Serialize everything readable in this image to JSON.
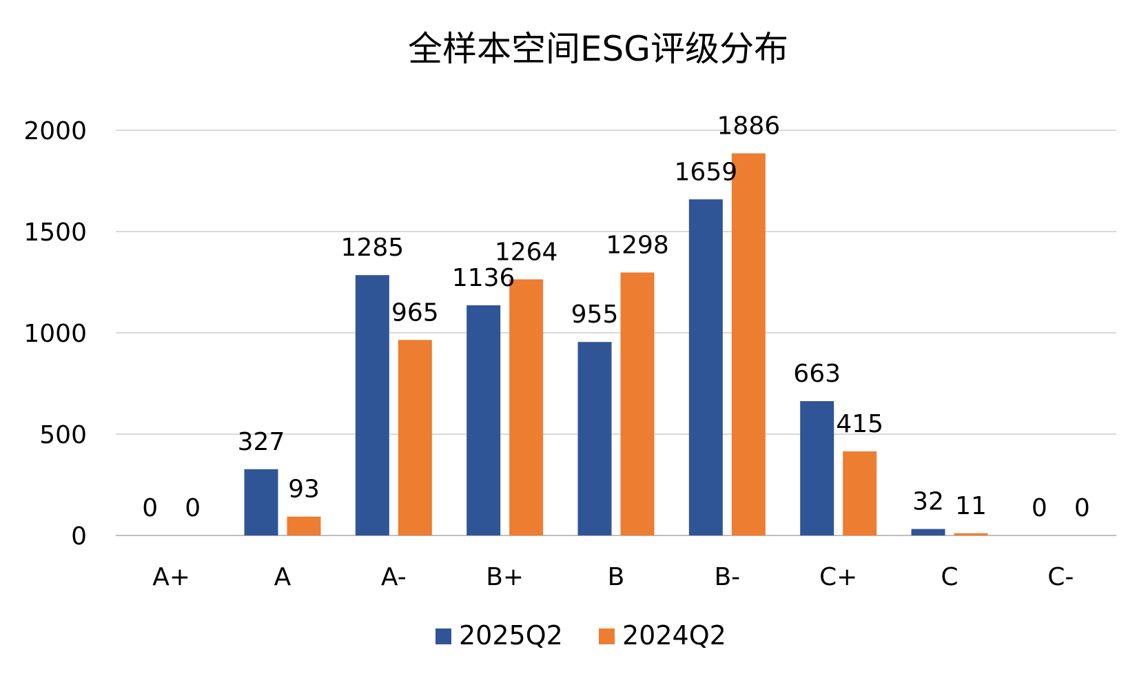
{
  "chart_data": {
    "type": "bar",
    "title": "全样本空间ESG评级分布",
    "xlabel": "",
    "ylabel": "",
    "ylim": [
      0,
      2000
    ],
    "yticks": [
      0,
      500,
      1000,
      1500,
      2000
    ],
    "grid": true,
    "legend": "bottom",
    "categories": [
      "A+",
      "A",
      "A-",
      "B+",
      "B",
      "B-",
      "C+",
      "C",
      "C-"
    ],
    "series": [
      {
        "name": "2025Q2",
        "color": "#2F5597",
        "values": [
          0,
          327,
          1285,
          1136,
          955,
          1659,
          663,
          32,
          0
        ]
      },
      {
        "name": "2024Q2",
        "color": "#ED7D31",
        "values": [
          0,
          93,
          965,
          1264,
          1298,
          1886,
          415,
          11,
          0
        ]
      }
    ]
  }
}
